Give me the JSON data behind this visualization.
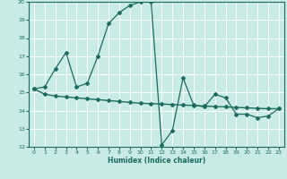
{
  "xlabel": "Humidex (Indice chaleur)",
  "xlim": [
    -0.5,
    23.5
  ],
  "ylim": [
    12,
    20
  ],
  "yticks": [
    12,
    13,
    14,
    15,
    16,
    17,
    18,
    19,
    20
  ],
  "xticks": [
    0,
    1,
    2,
    3,
    4,
    5,
    6,
    7,
    8,
    9,
    10,
    11,
    12,
    13,
    14,
    15,
    16,
    17,
    18,
    19,
    20,
    21,
    22,
    23
  ],
  "bg_color": "#c8ebe6",
  "line_color": "#1a6b60",
  "grid_color": "#ffffff",
  "line1_x": [
    0,
    1,
    2,
    3,
    4,
    5,
    6,
    7,
    8,
    9,
    10,
    11,
    12,
    13,
    14,
    15,
    16,
    17,
    18,
    19,
    20,
    21,
    22,
    23
  ],
  "line1_y": [
    15.2,
    15.3,
    16.3,
    17.2,
    15.3,
    15.5,
    17.0,
    18.8,
    19.4,
    19.8,
    20.0,
    20.0,
    12.1,
    12.9,
    15.8,
    14.3,
    14.2,
    14.9,
    14.7,
    13.8,
    13.8,
    13.6,
    13.7,
    14.1
  ],
  "line2_x": [
    0,
    1,
    2,
    3,
    4,
    5,
    6,
    7,
    8,
    9,
    10,
    11,
    12,
    13,
    14,
    15,
    16,
    17,
    18,
    19,
    20,
    21,
    22,
    23
  ],
  "line2_y": [
    15.2,
    14.9,
    14.8,
    14.75,
    14.7,
    14.65,
    14.6,
    14.55,
    14.5,
    14.45,
    14.4,
    14.38,
    14.36,
    14.33,
    14.3,
    14.28,
    14.25,
    14.22,
    14.2,
    14.17,
    14.15,
    14.12,
    14.1,
    14.1
  ]
}
